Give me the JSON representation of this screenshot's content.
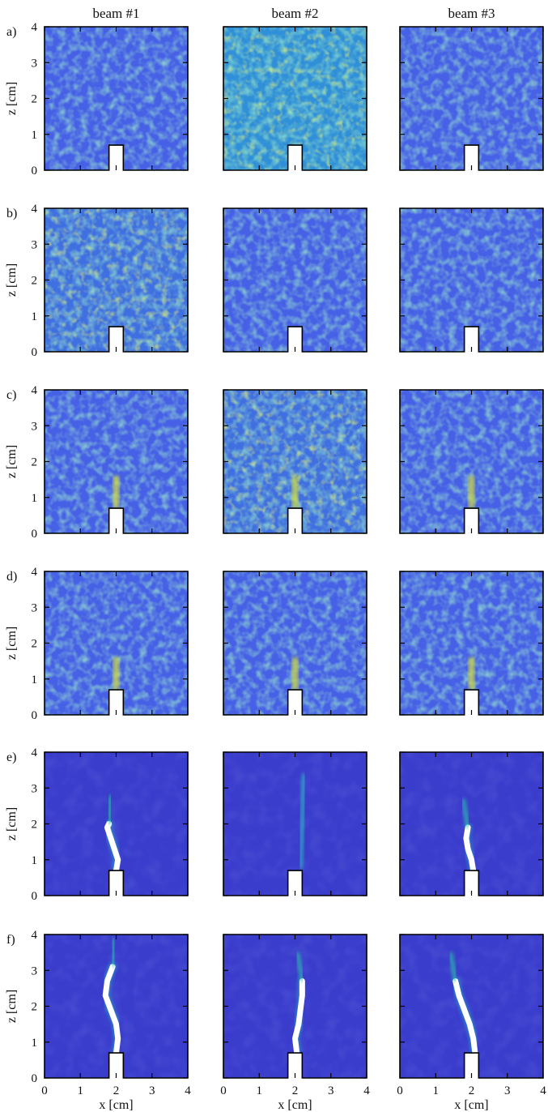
{
  "figure": {
    "columns": [
      "beam #1",
      "beam #2",
      "beam #3"
    ],
    "rows": [
      "a)",
      "b)",
      "c)",
      "d)",
      "e)",
      "f)"
    ],
    "xlabel": "x [cm]",
    "ylabel": "z [cm]",
    "x_ticks": [
      "0",
      "1",
      "2",
      "3",
      "4"
    ],
    "y_ticks": [
      "0",
      "1",
      "2",
      "3",
      "4"
    ]
  },
  "chart_data": {
    "type": "heatmap",
    "xlim": [
      0,
      4
    ],
    "ylim": [
      0,
      4
    ],
    "notch": {
      "x_range": [
        1.8,
        2.2
      ],
      "height": 0.7
    },
    "colors": {
      "low": "#3c4fdc",
      "mid": "#1f9ed0",
      "high": "#c9dc2a",
      "crack": "#ffffff"
    },
    "panels": [
      {
        "row": "a)",
        "column": "beam #1",
        "intensity": "low",
        "crack_path": []
      },
      {
        "row": "a)",
        "column": "beam #2",
        "intensity": "high",
        "crack_path": []
      },
      {
        "row": "a)",
        "column": "beam #3",
        "intensity": "low",
        "crack_path": []
      },
      {
        "row": "b)",
        "column": "beam #1",
        "intensity": "medium",
        "crack_path": []
      },
      {
        "row": "b)",
        "column": "beam #2",
        "intensity": "low",
        "crack_path": []
      },
      {
        "row": "b)",
        "column": "beam #3",
        "intensity": "low",
        "crack_path": []
      },
      {
        "row": "c)",
        "column": "beam #1",
        "intensity": "low",
        "crack_path": []
      },
      {
        "row": "c)",
        "column": "beam #2",
        "intensity": "medium",
        "crack_path": []
      },
      {
        "row": "c)",
        "column": "beam #3",
        "intensity": "low",
        "crack_path": []
      },
      {
        "row": "d)",
        "column": "beam #1",
        "intensity": "low",
        "crack_path": []
      },
      {
        "row": "d)",
        "column": "beam #2",
        "intensity": "low",
        "crack_path": []
      },
      {
        "row": "d)",
        "column": "beam #3",
        "intensity": "low",
        "crack_path": []
      },
      {
        "row": "e)",
        "column": "beam #1",
        "intensity": "dark",
        "crack_path": [
          [
            2.0,
            0.7
          ],
          [
            2.05,
            1.0
          ],
          [
            1.95,
            1.3
          ],
          [
            1.85,
            1.6
          ],
          [
            1.75,
            1.9
          ],
          [
            1.8,
            2.0
          ]
        ]
      },
      {
        "row": "e)",
        "column": "beam #2",
        "intensity": "dark",
        "crack_path": []
      },
      {
        "row": "e)",
        "column": "beam #3",
        "intensity": "dark",
        "crack_path": [
          [
            2.05,
            0.7
          ],
          [
            2.0,
            1.0
          ],
          [
            1.9,
            1.3
          ],
          [
            1.85,
            1.6
          ],
          [
            1.9,
            1.9
          ]
        ]
      },
      {
        "row": "f)",
        "column": "beam #1",
        "intensity": "dark",
        "crack_path": [
          [
            2.0,
            0.7
          ],
          [
            2.05,
            1.1
          ],
          [
            2.0,
            1.5
          ],
          [
            1.85,
            1.9
          ],
          [
            1.7,
            2.3
          ],
          [
            1.75,
            2.7
          ],
          [
            1.9,
            3.1
          ]
        ]
      },
      {
        "row": "f)",
        "column": "beam #2",
        "intensity": "dark",
        "crack_path": [
          [
            2.05,
            0.7
          ],
          [
            2.0,
            1.1
          ],
          [
            2.1,
            1.5
          ],
          [
            2.15,
            1.9
          ],
          [
            2.2,
            2.3
          ],
          [
            2.2,
            2.7
          ]
        ]
      },
      {
        "row": "f)",
        "column": "beam #3",
        "intensity": "dark",
        "crack_path": [
          [
            2.1,
            0.7
          ],
          [
            2.05,
            1.1
          ],
          [
            1.95,
            1.5
          ],
          [
            1.8,
            1.9
          ],
          [
            1.65,
            2.3
          ],
          [
            1.55,
            2.7
          ]
        ]
      }
    ]
  }
}
